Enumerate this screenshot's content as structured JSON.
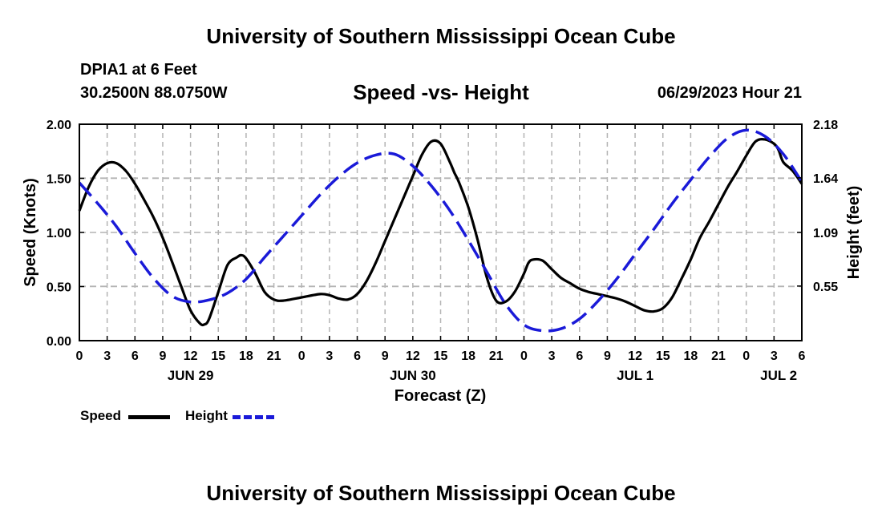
{
  "header": {
    "title": "University of Southern Mississippi Ocean Cube",
    "station": "DPIA1 at 6 Feet",
    "coords": "30.2500N  88.0750W",
    "subtitle": "Speed -vs- Height",
    "datetime": "06/29/2023 Hour 21"
  },
  "footer": {
    "title": "University of Southern Mississippi Ocean Cube"
  },
  "legend": {
    "speed_label": "Speed",
    "height_label": "Height"
  },
  "colors": {
    "speed": "#000000",
    "height": "#1a1ad8",
    "grid": "#b4b4b4"
  },
  "chart_data": {
    "type": "line",
    "title": "Speed -vs- Height",
    "xlabel": "Forecast (Z)",
    "ylabel": "Speed (Knots)",
    "y2label": "Height (feet)",
    "xlim": [
      0,
      78
    ],
    "ylim": [
      0,
      2.0
    ],
    "y2lim": [
      0,
      2.18
    ],
    "grid": true,
    "legend_position": "bottom-left",
    "x_ticks": [
      0,
      3,
      6,
      9,
      12,
      15,
      18,
      21,
      24,
      27,
      30,
      33,
      36,
      39,
      42,
      45,
      48,
      51,
      54,
      57,
      60,
      63,
      66,
      69,
      72,
      75,
      78
    ],
    "x_tick_labels": [
      "0",
      "3",
      "6",
      "9",
      "12",
      "15",
      "18",
      "21",
      "0",
      "3",
      "6",
      "9",
      "12",
      "15",
      "18",
      "21",
      "0",
      "3",
      "6",
      "9",
      "12",
      "15",
      "18",
      "21",
      "0",
      "3",
      "6"
    ],
    "y_ticks": [
      0,
      0.5,
      1.0,
      1.5,
      2.0
    ],
    "y_tick_labels": [
      "0.00",
      "0.50",
      "1.00",
      "1.50",
      "2.00"
    ],
    "y2_ticks": [
      0.55,
      1.09,
      1.64,
      2.18
    ],
    "y2_tick_labels": [
      "0.55",
      "1.09",
      "1.64",
      "2.18"
    ],
    "date_labels": [
      {
        "x": 12,
        "label": "JUN 29"
      },
      {
        "x": 36,
        "label": "JUN 30"
      },
      {
        "x": 60,
        "label": "JUL 1"
      },
      {
        "x": 75.5,
        "label": "JUL 2"
      }
    ],
    "series": [
      {
        "name": "Speed",
        "axis": "left",
        "style": "solid",
        "x": [
          0,
          1,
          2,
          3,
          4,
          5,
          6,
          7,
          8,
          9,
          10,
          11,
          12,
          13,
          13.5,
          14,
          15,
          16,
          17,
          17.5,
          18,
          19,
          20,
          21,
          22,
          24,
          26,
          27,
          28,
          29,
          30,
          31,
          32,
          33,
          34,
          35,
          36,
          37,
          38,
          39,
          40,
          40.5,
          41,
          42,
          43,
          44,
          45,
          46,
          47,
          48,
          48.5,
          49,
          50,
          51,
          52,
          53,
          54,
          55,
          56,
          57,
          58,
          59,
          60,
          61,
          62,
          63,
          64,
          65,
          66,
          67,
          68,
          69,
          70,
          71,
          72,
          73,
          74,
          75,
          75.5,
          76,
          77,
          78
        ],
        "values": [
          1.2,
          1.42,
          1.57,
          1.64,
          1.64,
          1.57,
          1.45,
          1.3,
          1.14,
          0.95,
          0.73,
          0.5,
          0.28,
          0.16,
          0.15,
          0.2,
          0.45,
          0.7,
          0.77,
          0.79,
          0.76,
          0.62,
          0.45,
          0.38,
          0.37,
          0.4,
          0.43,
          0.42,
          0.39,
          0.38,
          0.43,
          0.55,
          0.72,
          0.92,
          1.12,
          1.32,
          1.52,
          1.72,
          1.84,
          1.82,
          1.65,
          1.55,
          1.46,
          1.23,
          0.93,
          0.58,
          0.37,
          0.36,
          0.45,
          0.62,
          0.72,
          0.75,
          0.74,
          0.66,
          0.58,
          0.53,
          0.48,
          0.45,
          0.43,
          0.41,
          0.39,
          0.36,
          0.32,
          0.28,
          0.27,
          0.3,
          0.4,
          0.57,
          0.75,
          0.95,
          1.1,
          1.26,
          1.42,
          1.56,
          1.71,
          1.84,
          1.86,
          1.82,
          1.76,
          1.65,
          1.57,
          1.45
        ]
      },
      {
        "name": "Height",
        "axis": "right",
        "style": "dashed",
        "x": [
          0,
          2,
          4,
          6,
          8,
          10,
          12,
          14,
          16,
          18,
          20,
          22,
          24,
          26,
          28,
          30,
          32,
          34,
          36,
          38,
          40,
          42,
          44,
          46,
          48,
          50,
          52,
          54,
          56,
          58,
          60,
          62,
          64,
          66,
          68,
          70,
          72,
          74,
          76,
          78
        ],
        "values": [
          1.59,
          1.38,
          1.15,
          0.88,
          0.63,
          0.45,
          0.39,
          0.41,
          0.48,
          0.62,
          0.84,
          1.05,
          1.26,
          1.47,
          1.65,
          1.79,
          1.87,
          1.88,
          1.76,
          1.56,
          1.31,
          1.01,
          0.69,
          0.37,
          0.16,
          0.1,
          0.12,
          0.22,
          0.4,
          0.62,
          0.87,
          1.12,
          1.38,
          1.62,
          1.85,
          2.04,
          2.12,
          2.06,
          1.88,
          1.6
        ]
      }
    ]
  }
}
